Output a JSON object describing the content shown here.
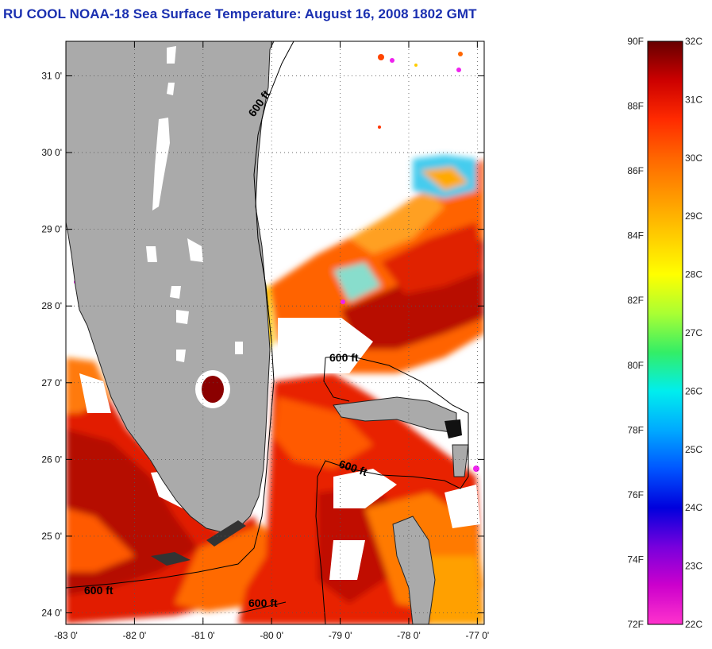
{
  "title": "RU COOL  NOAA-18  Sea Surface Temperature:  August 16, 2008 1802 GMT",
  "map": {
    "lat_ticks": [
      "31 0'",
      "30 0'",
      "29 0'",
      "28 0'",
      "27 0'",
      "26 0'",
      "25 0'",
      "24 0'"
    ],
    "lon_ticks": [
      "-83 0'",
      "-82 0'",
      "-81 0'",
      "-80 0'",
      "-79 0'",
      "-78 0'",
      "-77 0'"
    ],
    "lat_values": [
      31,
      30,
      29,
      28,
      27,
      26,
      25,
      24
    ],
    "lon_values": [
      -83,
      -82,
      -81,
      -80,
      -79,
      -78,
      -77
    ],
    "lat_range": [
      23.85,
      31.45
    ],
    "lon_range": [
      -83,
      -76.9
    ],
    "contours": [
      {
        "label": "600 ft"
      },
      {
        "label": "600 ft"
      },
      {
        "label": "600 ft"
      },
      {
        "label": "600 ft"
      },
      {
        "label": "600 ft"
      }
    ],
    "colors": {
      "land": "#aaaaaa",
      "no_data": "#ffffff",
      "lake": "#8b0000"
    }
  },
  "colorbar": {
    "fahrenheit_labels": [
      "90F",
      "88F",
      "86F",
      "84F",
      "82F",
      "80F",
      "78F",
      "76F",
      "74F",
      "72F"
    ],
    "celsius_labels": [
      "32C",
      "31C",
      "30C",
      "29C",
      "28C",
      "27C",
      "26C",
      "25C",
      "24C",
      "23C",
      "22C"
    ],
    "gradient_colors": [
      "#660000",
      "#cc0000",
      "#ff2a00",
      "#ff6600",
      "#ff9900",
      "#ffcc00",
      "#ffff00",
      "#aaff33",
      "#33ee66",
      "#00eeee",
      "#00aaff",
      "#0055ff",
      "#0000dd",
      "#7700dd",
      "#cc00cc",
      "#ff33cc"
    ]
  }
}
